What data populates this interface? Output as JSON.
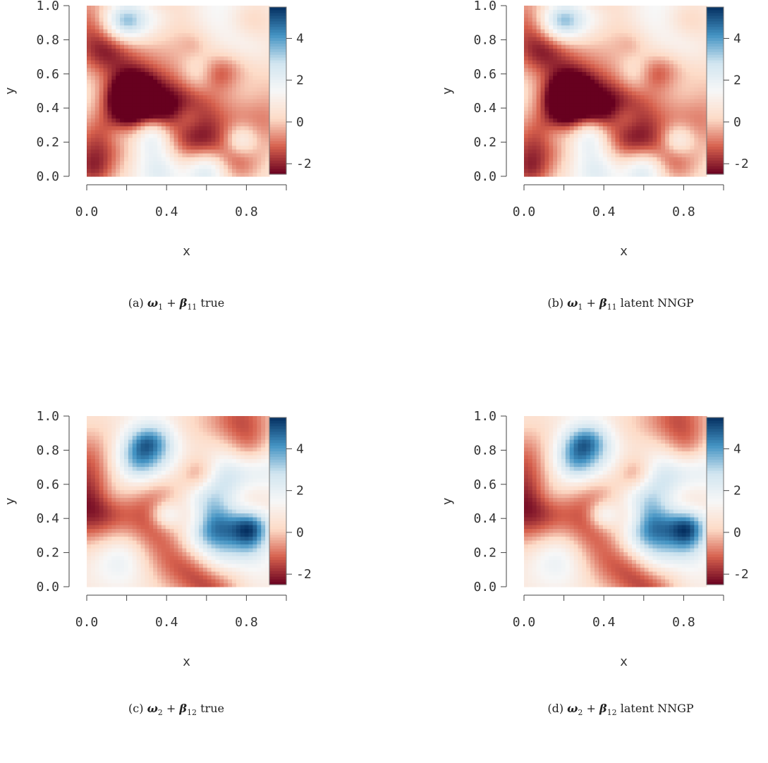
{
  "chart_data": [
    {
      "type": "heatmap",
      "panel_label": "(a)",
      "caption_suffix": "true",
      "xlabel": "x",
      "ylabel": "y",
      "xlim": [
        0,
        1
      ],
      "ylim": [
        0,
        1
      ],
      "x_ticks": [
        "0.0",
        "0.4",
        "0.8"
      ],
      "y_ticks": [
        "0.0",
        "0.2",
        "0.4",
        "0.6",
        "0.8",
        "1.0"
      ],
      "colorbar": {
        "ticks": [
          "-2",
          "0",
          "2",
          "4"
        ],
        "range": [
          -2.5,
          5.5
        ],
        "colors": [
          "#67001f",
          "#d6604d",
          "#fddbc7",
          "#f7f7f7",
          "#d1e5f0",
          "#4393c3",
          "#053061"
        ]
      },
      "field": "omega1_beta11",
      "grid": false,
      "legend": "right"
    },
    {
      "type": "heatmap",
      "panel_label": "(b)",
      "caption_suffix": "latent NNGP",
      "xlabel": "x",
      "ylabel": "y",
      "xlim": [
        0,
        1
      ],
      "ylim": [
        0,
        1
      ],
      "x_ticks": [
        "0.0",
        "0.4",
        "0.8"
      ],
      "y_ticks": [
        "0.0",
        "0.2",
        "0.4",
        "0.6",
        "0.8",
        "1.0"
      ],
      "colorbar": {
        "ticks": [
          "-2",
          "0",
          "2",
          "4"
        ],
        "range": [
          -2.5,
          5.5
        ],
        "colors": [
          "#67001f",
          "#d6604d",
          "#fddbc7",
          "#f7f7f7",
          "#d1e5f0",
          "#4393c3",
          "#053061"
        ]
      },
      "field": "omega1_beta11",
      "grid": false,
      "legend": "right"
    },
    {
      "type": "heatmap",
      "panel_label": "(c)",
      "caption_suffix": "true",
      "xlabel": "x",
      "ylabel": "y",
      "xlim": [
        0,
        1
      ],
      "ylim": [
        0,
        1
      ],
      "x_ticks": [
        "0.0",
        "0.4",
        "0.8"
      ],
      "y_ticks": [
        "0.0",
        "0.2",
        "0.4",
        "0.6",
        "0.8",
        "1.0"
      ],
      "colorbar": {
        "ticks": [
          "-2",
          "0",
          "2",
          "4"
        ],
        "range": [
          -2.5,
          5.5
        ],
        "colors": [
          "#67001f",
          "#d6604d",
          "#fddbc7",
          "#f7f7f7",
          "#d1e5f0",
          "#4393c3",
          "#053061"
        ]
      },
      "field": "omega2_beta12",
      "grid": false,
      "legend": "right"
    },
    {
      "type": "heatmap",
      "panel_label": "(d)",
      "caption_suffix": "latent NNGP",
      "xlabel": "x",
      "ylabel": "y",
      "xlim": [
        0,
        1
      ],
      "ylim": [
        0,
        1
      ],
      "x_ticks": [
        "0.0",
        "0.4",
        "0.8"
      ],
      "y_ticks": [
        "0.0",
        "0.2",
        "0.4",
        "0.6",
        "0.8",
        "1.0"
      ],
      "colorbar": {
        "ticks": [
          "-2",
          "0",
          "2",
          "4"
        ],
        "range": [
          -2.5,
          5.5
        ],
        "colors": [
          "#67001f",
          "#d6604d",
          "#fddbc7",
          "#f7f7f7",
          "#d1e5f0",
          "#4393c3",
          "#053061"
        ]
      },
      "field": "omega2_beta12",
      "grid": false,
      "legend": "right"
    }
  ],
  "captions": [
    {
      "label": "(a)",
      "omega": "ω",
      "omega_sub": "1",
      "plus": "+",
      "beta": "β",
      "beta_sub": "11",
      "suffix": "true"
    },
    {
      "label": "(b)",
      "omega": "ω",
      "omega_sub": "1",
      "plus": "+",
      "beta": "β",
      "beta_sub": "11",
      "suffix": "latent NNGP"
    },
    {
      "label": "(c)",
      "omega": "ω",
      "omega_sub": "2",
      "plus": "+",
      "beta": "β",
      "beta_sub": "12",
      "suffix": "true"
    },
    {
      "label": "(d)",
      "omega": "ω",
      "omega_sub": "2",
      "plus": "+",
      "beta": "β",
      "beta_sub": "12",
      "suffix": "latent NNGP"
    }
  ]
}
